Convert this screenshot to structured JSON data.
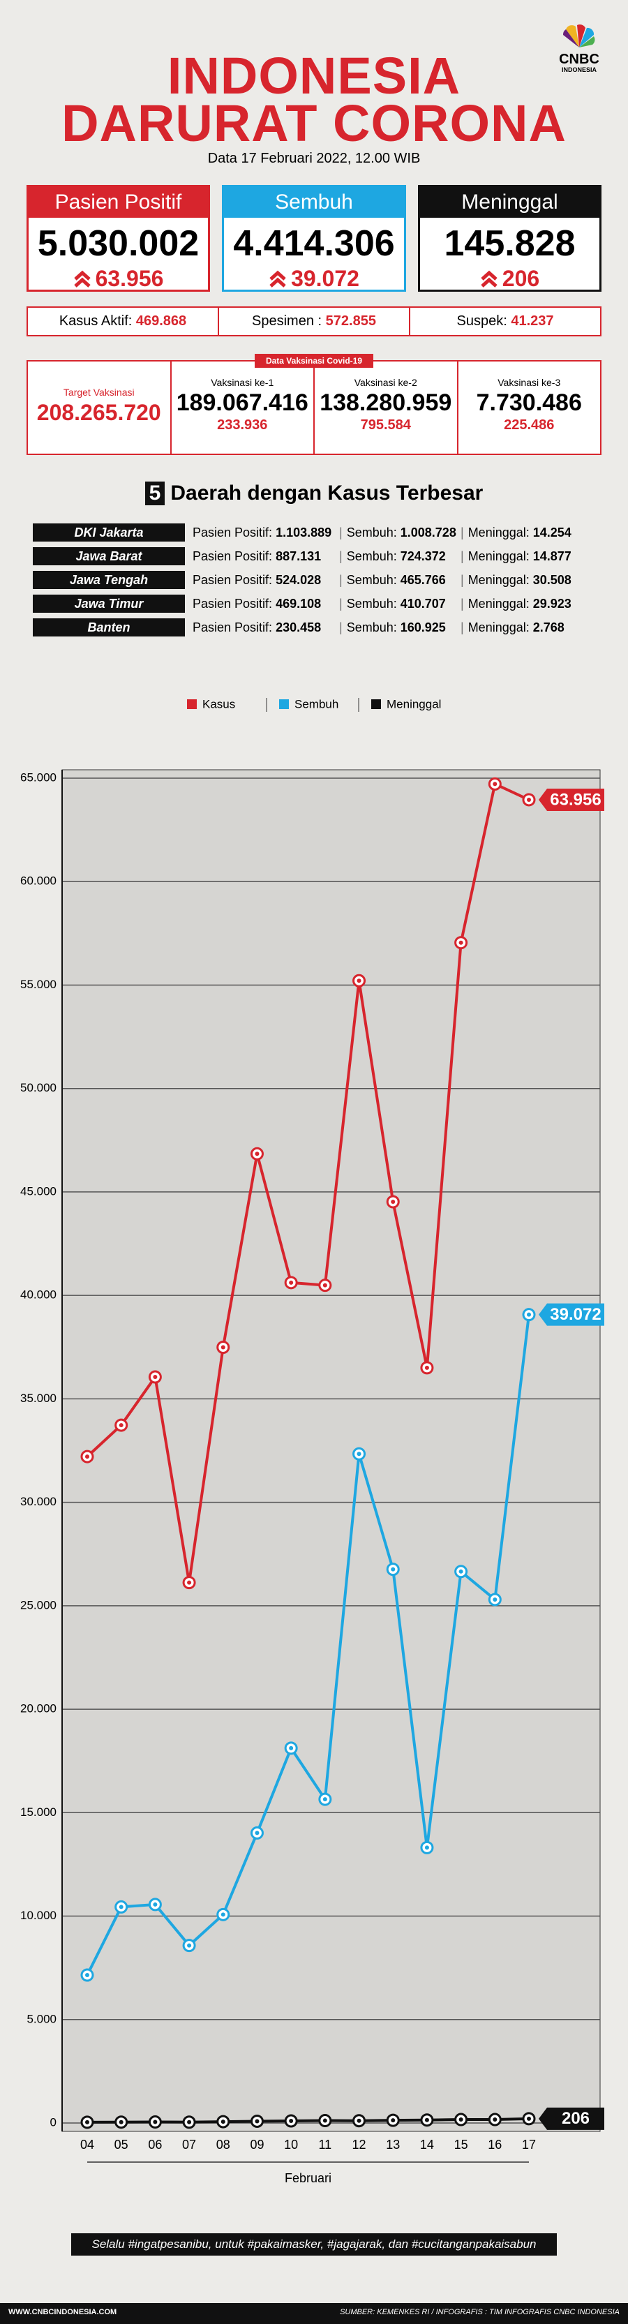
{
  "header": {
    "title_line1": "INDONESIA",
    "title_line2": "DARURAT CORONA",
    "date": "Data 17 Februari 2022, 12.00 WIB",
    "logo_text": "CNBC",
    "logo_sub": "INDONESIA"
  },
  "cards": [
    {
      "label": "Pasien Positif",
      "value": "5.030.002",
      "change": "63.956"
    },
    {
      "label": "Sembuh",
      "value": "4.414.306",
      "change": "39.072"
    },
    {
      "label": "Meninggal",
      "value": "145.828",
      "change": "206"
    }
  ],
  "stats": [
    {
      "label": "Kasus Aktif:",
      "value": "469.868"
    },
    {
      "label": "Spesimen :",
      "value": "572.855"
    },
    {
      "label": "Suspek:",
      "value": "41.237"
    }
  ],
  "vaccination": {
    "tag": "Data Vaksinasi Covid-19",
    "target_label": "Target Vaksinasi",
    "target_value": "208.265.720",
    "doses": [
      {
        "label": "Vaksinasi ke-1",
        "value": "189.067.416",
        "change": "233.936"
      },
      {
        "label": "Vaksinasi ke-2",
        "value": "138.280.959",
        "change": "795.584"
      },
      {
        "label": "Vaksinasi ke-3",
        "value": "7.730.486",
        "change": "225.486"
      }
    ]
  },
  "regions": {
    "number": "5",
    "title": "Daerah dengan Kasus Terbesar",
    "positive_label": "Pasien Positif:",
    "recovered_label": "Sembuh:",
    "death_label": "Meninggal:",
    "rows": [
      {
        "name": "DKI Jakarta",
        "positive": "1.103.889",
        "recovered": "1.008.728",
        "deaths": "14.254"
      },
      {
        "name": "Jawa Barat",
        "positive": "887.131",
        "recovered": "724.372",
        "deaths": "14.877"
      },
      {
        "name": "Jawa Tengah",
        "positive": "524.028",
        "recovered": "465.766",
        "deaths": "30.508"
      },
      {
        "name": "Jawa Timur",
        "positive": "469.108",
        "recovered": "410.707",
        "deaths": "29.923"
      },
      {
        "name": "Banten",
        "positive": "230.458",
        "recovered": "160.925",
        "deaths": "2.768"
      }
    ]
  },
  "chart_data": {
    "type": "line",
    "x_label": "Februari",
    "categories": [
      "04",
      "05",
      "06",
      "07",
      "08",
      "09",
      "10",
      "11",
      "12",
      "13",
      "14",
      "15",
      "16",
      "17"
    ],
    "series": [
      {
        "name": "Kasus",
        "color": "#d7252d",
        "values": [
          32211,
          33729,
          36057,
          26121,
          37492,
          46843,
          40618,
          40489,
          55209,
          44526,
          36501,
          57049,
          64718,
          63956
        ],
        "end_label": "63.956"
      },
      {
        "name": "Sembuh",
        "color": "#1ea7e1",
        "values": [
          7150,
          10442,
          10560,
          8581,
          10075,
          14018,
          18118,
          15648,
          32340,
          26762,
          13311,
          26654,
          25300,
          39072
        ],
        "end_label": "39.072"
      },
      {
        "name": "Meninggal",
        "color": "#111111",
        "values": [
          38,
          44,
          49,
          42,
          65,
          86,
          100,
          116,
          111,
          130,
          145,
          167,
          167,
          206
        ],
        "end_label": "206"
      }
    ],
    "ylim": [
      0,
      65000
    ],
    "yticks": [
      0,
      {
        "value": 5000,
        "label": "5.000"
      },
      {
        "value": 10000,
        "label": "10.000"
      },
      {
        "value": 15000,
        "label": "15.000"
      },
      {
        "value": 20000,
        "label": "20.000"
      },
      {
        "value": 25000,
        "label": "25.000"
      },
      {
        "value": 30000,
        "label": "30.000"
      },
      {
        "value": 35000,
        "label": "35.000"
      },
      {
        "value": 40000,
        "label": "40.000"
      },
      {
        "value": 45000,
        "label": "45.000"
      },
      {
        "value": 50000,
        "label": "50.000"
      },
      {
        "value": 55000,
        "label": "55.000"
      },
      {
        "value": 60000,
        "label": "60.000"
      },
      {
        "value": 65000,
        "label": "65.000"
      }
    ],
    "grid": true
  },
  "footer": {
    "slogan": "Selalu #ingatpesanibu, untuk #pakaimasker, #jagajarak, dan #cucitanganpakaisabun",
    "website": "WWW.CNBCINDONESIA.COM",
    "source": "SUMBER: KEMENKES RI / INFOGRAFIS : TIM INFOGRAFIS CNBC INDONESIA"
  }
}
